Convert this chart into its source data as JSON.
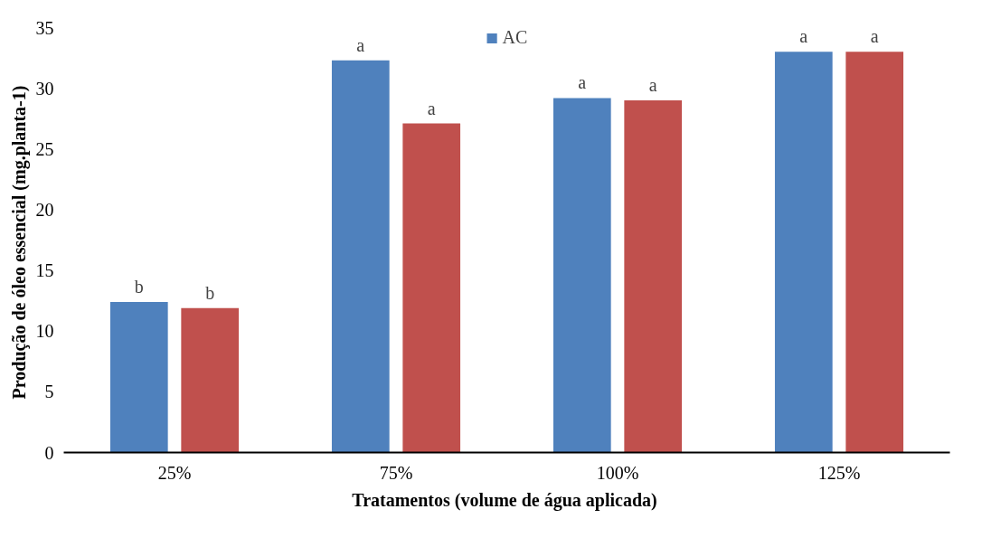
{
  "chart_data": {
    "type": "bar",
    "xlabel": "Tratamentos  (volume de água aplicada)",
    "ylabel": "Produção  de óleo essencial (mg.planta-1)",
    "categories": [
      "25%",
      "75%",
      "100%",
      "125%"
    ],
    "series": [
      {
        "name": "AC",
        "color": "#4f81bd",
        "values": [
          12.4,
          32.3,
          29.2,
          33.0
        ]
      },
      {
        "color": "#c0504d",
        "values": [
          11.9,
          27.1,
          29.0,
          33.0
        ]
      }
    ],
    "ylim": [
      0,
      35
    ],
    "yticks": [
      0,
      5,
      10,
      15,
      20,
      25,
      30,
      35
    ],
    "grid": false,
    "legend": "top",
    "annotations": [
      "b",
      "b",
      "a",
      "a",
      "a",
      "a",
      "a",
      "a"
    ]
  }
}
